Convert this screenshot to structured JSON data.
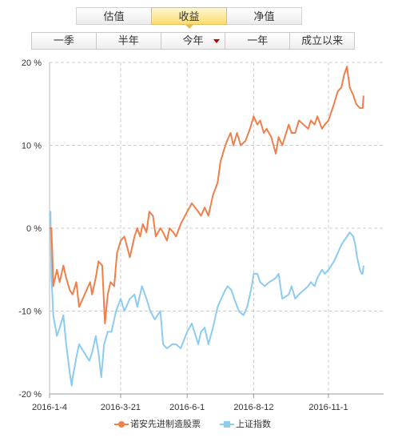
{
  "tabs": [
    {
      "label": "估值",
      "active": false
    },
    {
      "label": "收益",
      "active": true
    },
    {
      "label": "净值",
      "active": false
    }
  ],
  "periods": [
    {
      "label": "一季",
      "dropdown": false
    },
    {
      "label": "半年",
      "dropdown": false
    },
    {
      "label": "今年",
      "dropdown": true
    },
    {
      "label": "一年",
      "dropdown": false
    },
    {
      "label": "成立以来",
      "dropdown": false
    }
  ],
  "colors": {
    "fund": "#f07f4b",
    "index": "#8dcbef",
    "caret": "#c00000",
    "active_tab": "#fbdc74"
  },
  "chart_data": {
    "type": "line",
    "title": "",
    "xlabel": "",
    "ylabel": "",
    "x_ticks": [
      "2016-1-4",
      "2016-3-21",
      "2016-6-1",
      "2016-8-12",
      "2016-11-1"
    ],
    "y_ticks": [
      "20 %",
      "10 %",
      "0 %",
      "-10 %",
      "-20 %"
    ],
    "ylim": [
      -20,
      20
    ],
    "grid": true,
    "legend_position": "bottom",
    "series": [
      {
        "name": "诺安先进制造股票",
        "values": [
          [
            "2016-01-04",
            0
          ],
          [
            "2016-01-06",
            0
          ],
          [
            "2016-01-07",
            -3
          ],
          [
            "2016-01-08",
            -7
          ],
          [
            "2016-01-12",
            -5
          ],
          [
            "2016-01-15",
            -6.5
          ],
          [
            "2016-01-19",
            -4.5
          ],
          [
            "2016-01-22",
            -6
          ],
          [
            "2016-01-26",
            -7.5
          ],
          [
            "2016-01-29",
            -8
          ],
          [
            "2016-02-02",
            -6.5
          ],
          [
            "2016-02-05",
            -9.5
          ],
          [
            "2016-02-15",
            -7
          ],
          [
            "2016-02-17",
            -6.5
          ],
          [
            "2016-02-19",
            -8
          ],
          [
            "2016-02-23",
            -6
          ],
          [
            "2016-02-26",
            -4
          ],
          [
            "2016-03-01",
            -4.5
          ],
          [
            "2016-03-04",
            -11.5
          ],
          [
            "2016-03-07",
            -8
          ],
          [
            "2016-03-10",
            -6.5
          ],
          [
            "2016-03-14",
            -7
          ],
          [
            "2016-03-17",
            -3
          ],
          [
            "2016-03-21",
            -1.5
          ],
          [
            "2016-03-25",
            -1
          ],
          [
            "2016-03-31",
            -3.5
          ],
          [
            "2016-04-05",
            -1
          ],
          [
            "2016-04-08",
            0
          ],
          [
            "2016-04-11",
            -1
          ],
          [
            "2016-04-14",
            0.5
          ],
          [
            "2016-04-18",
            -0.5
          ],
          [
            "2016-04-21",
            2
          ],
          [
            "2016-04-25",
            1.5
          ],
          [
            "2016-04-28",
            -1
          ],
          [
            "2016-05-03",
            0
          ],
          [
            "2016-05-06",
            -0.5
          ],
          [
            "2016-05-10",
            -1.5
          ],
          [
            "2016-05-13",
            0
          ],
          [
            "2016-05-17",
            -0.5
          ],
          [
            "2016-05-20",
            -1
          ],
          [
            "2016-05-25",
            0.5
          ],
          [
            "2016-06-01",
            2
          ],
          [
            "2016-06-06",
            3
          ],
          [
            "2016-06-13",
            2
          ],
          [
            "2016-06-16",
            1.5
          ],
          [
            "2016-06-20",
            2.5
          ],
          [
            "2016-06-24",
            1.5
          ],
          [
            "2016-06-29",
            4
          ],
          [
            "2016-07-04",
            5.5
          ],
          [
            "2016-07-07",
            8
          ],
          [
            "2016-07-11",
            9.5
          ],
          [
            "2016-07-14",
            10.5
          ],
          [
            "2016-07-18",
            11.5
          ],
          [
            "2016-07-21",
            10
          ],
          [
            "2016-07-25",
            11.5
          ],
          [
            "2016-07-29",
            10
          ],
          [
            "2016-08-03",
            10.5
          ],
          [
            "2016-08-08",
            12
          ],
          [
            "2016-08-12",
            13.5
          ],
          [
            "2016-08-16",
            12.5
          ],
          [
            "2016-08-19",
            13
          ],
          [
            "2016-08-23",
            11.5
          ],
          [
            "2016-08-26",
            12
          ],
          [
            "2016-08-31",
            11
          ],
          [
            "2016-09-05",
            9
          ],
          [
            "2016-09-08",
            11
          ],
          [
            "2016-09-12",
            10
          ],
          [
            "2016-09-19",
            12.5
          ],
          [
            "2016-09-22",
            11.5
          ],
          [
            "2016-09-26",
            11.5
          ],
          [
            "2016-09-30",
            13
          ],
          [
            "2016-10-10",
            12
          ],
          [
            "2016-10-13",
            13
          ],
          [
            "2016-10-17",
            12.5
          ],
          [
            "2016-10-20",
            13.5
          ],
          [
            "2016-10-25",
            12
          ],
          [
            "2016-10-28",
            12.5
          ],
          [
            "2016-11-01",
            13
          ],
          [
            "2016-11-07",
            15
          ],
          [
            "2016-11-11",
            16.5
          ],
          [
            "2016-11-15",
            17
          ],
          [
            "2016-11-18",
            18.5
          ],
          [
            "2016-11-21",
            19.5
          ],
          [
            "2016-11-24",
            17
          ],
          [
            "2016-11-28",
            16
          ],
          [
            "2016-12-01",
            15
          ],
          [
            "2016-12-05",
            14.5
          ],
          [
            "2016-12-08",
            14.5
          ],
          [
            "2016-12-09",
            16
          ]
        ]
      },
      {
        "name": "上证指数",
        "values": [
          [
            "2016-01-04",
            1.5
          ],
          [
            "2016-01-05",
            2
          ],
          [
            "2016-01-06",
            -6
          ],
          [
            "2016-01-07",
            -8
          ],
          [
            "2016-01-08",
            -10.5
          ],
          [
            "2016-01-12",
            -13
          ],
          [
            "2016-01-15",
            -12
          ],
          [
            "2016-01-19",
            -10.5
          ],
          [
            "2016-01-22",
            -14
          ],
          [
            "2016-01-26",
            -17.5
          ],
          [
            "2016-01-28",
            -19
          ],
          [
            "2016-01-29",
            -18
          ],
          [
            "2016-02-03",
            -15
          ],
          [
            "2016-02-05",
            -14
          ],
          [
            "2016-02-16",
            -16
          ],
          [
            "2016-02-19",
            -15
          ],
          [
            "2016-02-23",
            -13
          ],
          [
            "2016-02-26",
            -15
          ],
          [
            "2016-02-29",
            -18
          ],
          [
            "2016-03-03",
            -14
          ],
          [
            "2016-03-07",
            -12.5
          ],
          [
            "2016-03-11",
            -12.5
          ],
          [
            "2016-03-16",
            -10
          ],
          [
            "2016-03-21",
            -8.5
          ],
          [
            "2016-03-25",
            -10
          ],
          [
            "2016-03-31",
            -8.5
          ],
          [
            "2016-04-05",
            -8
          ],
          [
            "2016-04-08",
            -9.5
          ],
          [
            "2016-04-13",
            -7
          ],
          [
            "2016-04-18",
            -8.5
          ],
          [
            "2016-04-22",
            -10
          ],
          [
            "2016-04-27",
            -11
          ],
          [
            "2016-05-03",
            -10
          ],
          [
            "2016-05-06",
            -14
          ],
          [
            "2016-05-10",
            -14.5
          ],
          [
            "2016-05-16",
            -14
          ],
          [
            "2016-05-20",
            -14
          ],
          [
            "2016-05-25",
            -14.5
          ],
          [
            "2016-06-01",
            -12.5
          ],
          [
            "2016-06-06",
            -11.5
          ],
          [
            "2016-06-13",
            -14
          ],
          [
            "2016-06-16",
            -12.5
          ],
          [
            "2016-06-20",
            -12
          ],
          [
            "2016-06-24",
            -14
          ],
          [
            "2016-06-29",
            -12
          ],
          [
            "2016-07-04",
            -9.5
          ],
          [
            "2016-07-08",
            -8.5
          ],
          [
            "2016-07-12",
            -7.5
          ],
          [
            "2016-07-15",
            -7
          ],
          [
            "2016-07-19",
            -7.5
          ],
          [
            "2016-07-22",
            -8.5
          ],
          [
            "2016-07-27",
            -10
          ],
          [
            "2016-08-01",
            -10.5
          ],
          [
            "2016-08-05",
            -9.5
          ],
          [
            "2016-08-10",
            -7
          ],
          [
            "2016-08-12",
            -5.5
          ],
          [
            "2016-08-16",
            -5.5
          ],
          [
            "2016-08-19",
            -6.5
          ],
          [
            "2016-08-24",
            -7
          ],
          [
            "2016-08-29",
            -6.5
          ],
          [
            "2016-09-05",
            -6
          ],
          [
            "2016-09-08",
            -5.5
          ],
          [
            "2016-09-12",
            -8.5
          ],
          [
            "2016-09-19",
            -8
          ],
          [
            "2016-09-22",
            -7
          ],
          [
            "2016-09-26",
            -8.5
          ],
          [
            "2016-09-30",
            -8
          ],
          [
            "2016-10-10",
            -7
          ],
          [
            "2016-10-13",
            -6.5
          ],
          [
            "2016-10-17",
            -7
          ],
          [
            "2016-10-20",
            -6
          ],
          [
            "2016-10-25",
            -5
          ],
          [
            "2016-10-28",
            -5.5
          ],
          [
            "2016-11-01",
            -5
          ],
          [
            "2016-11-07",
            -4
          ],
          [
            "2016-11-11",
            -3
          ],
          [
            "2016-11-15",
            -2
          ],
          [
            "2016-11-18",
            -1.5
          ],
          [
            "2016-11-21",
            -1
          ],
          [
            "2016-11-24",
            -0.5
          ],
          [
            "2016-11-28",
            -1
          ],
          [
            "2016-11-30",
            -2
          ],
          [
            "2016-12-02",
            -3.5
          ],
          [
            "2016-12-05",
            -5
          ],
          [
            "2016-12-07",
            -5.5
          ],
          [
            "2016-12-08",
            -5.5
          ],
          [
            "2016-12-09",
            -4.5
          ]
        ]
      }
    ]
  }
}
